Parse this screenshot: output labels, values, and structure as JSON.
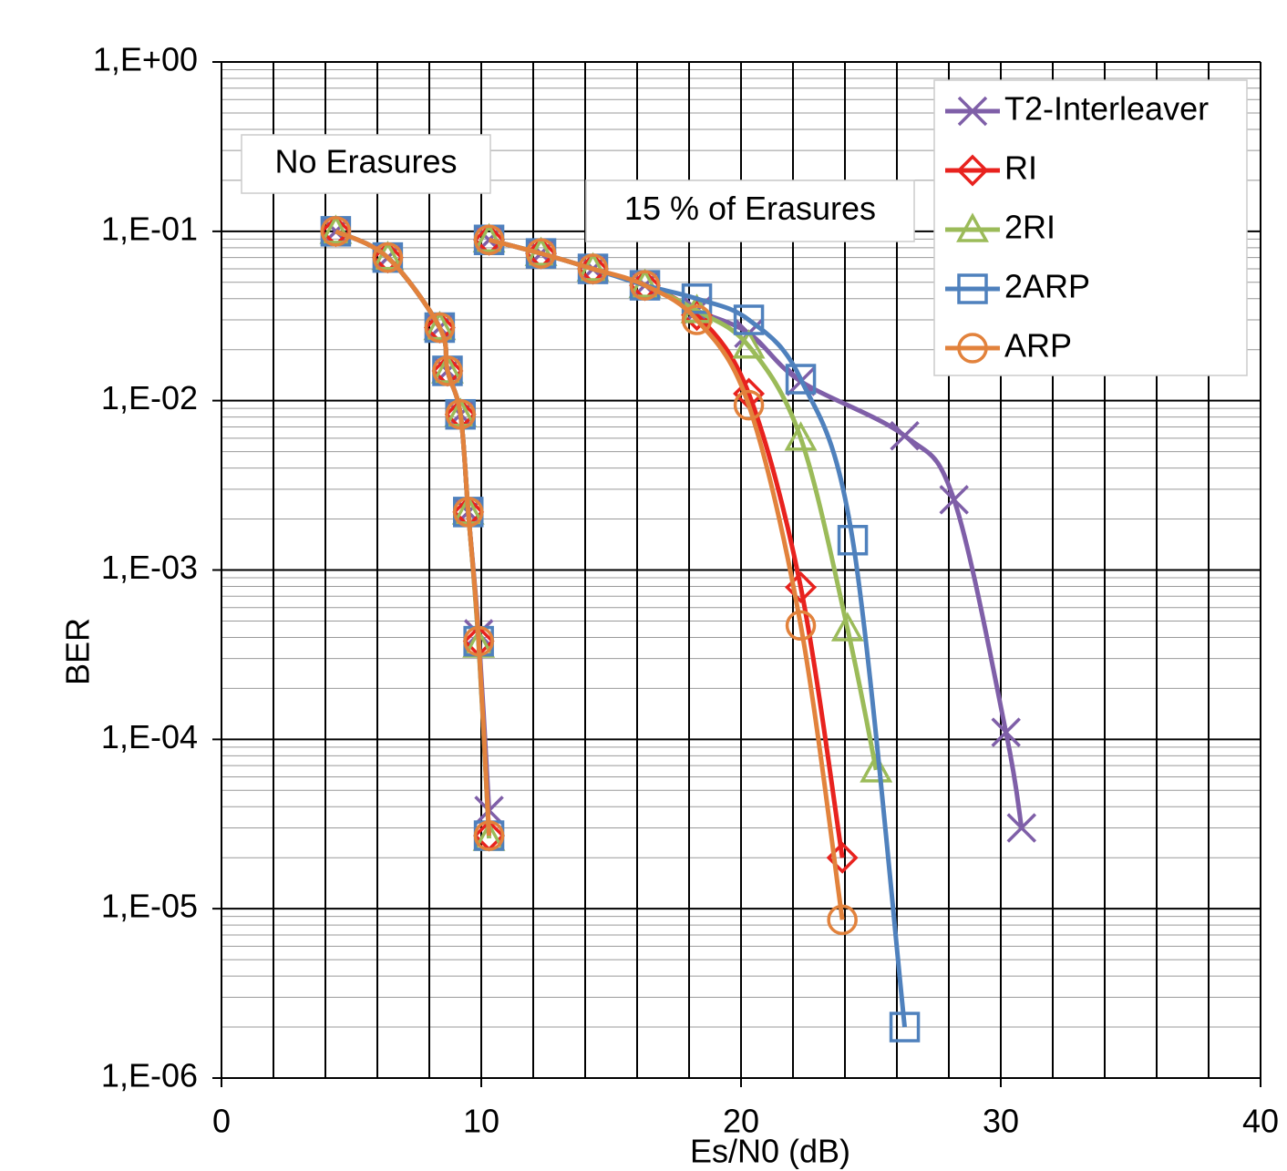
{
  "chart_data": {
    "type": "line",
    "xlabel": "Es/N0 (dB)",
    "ylabel": "BER",
    "xlim": [
      0,
      40
    ],
    "xticks": [
      0,
      10,
      20,
      30,
      40
    ],
    "ylim": [
      1e-06,
      1
    ],
    "log_y": true,
    "grid": true,
    "legend": "upper right",
    "yticks": [
      {
        "value": 1,
        "label": "1,E+00"
      },
      {
        "value": 0.1,
        "label": "1,E-01"
      },
      {
        "value": 0.01,
        "label": "1,E-02"
      },
      {
        "value": 0.001,
        "label": "1,E-03"
      },
      {
        "value": 0.0001,
        "label": "1,E-04"
      },
      {
        "value": 1e-05,
        "label": "1,E-05"
      },
      {
        "value": 1e-06,
        "label": "1,E-06"
      }
    ],
    "annotations": [
      "No Erasures",
      "15 % of Erasures"
    ],
    "series": [
      {
        "name": "T2-Interleaver",
        "color": "#7f5fa8",
        "marker": "x",
        "x": [
          4.4,
          6.4,
          8.4,
          8.7,
          9.2,
          9.5,
          9.9,
          10.3,
          null,
          10.3,
          12.3,
          14.3,
          16.3,
          18.3,
          20.3,
          22.3,
          26.3,
          28.2,
          30.2,
          30.8
        ],
        "values": [
          0.1,
          0.07,
          0.027,
          0.015,
          0.0083,
          0.0022,
          0.00042,
          3.8e-05,
          null,
          0.089,
          0.074,
          0.06,
          0.048,
          0.034,
          0.025,
          0.013,
          0.0062,
          0.0026,
          0.00011,
          3e-05
        ]
      },
      {
        "name": "RI",
        "color": "#e8221e",
        "marker": "diamond",
        "x": [
          4.4,
          6.4,
          8.4,
          8.7,
          9.2,
          9.5,
          9.9,
          10.3,
          null,
          10.3,
          12.3,
          14.3,
          16.3,
          18.3,
          20.3,
          22.3,
          23.9
        ],
        "values": [
          0.1,
          0.07,
          0.027,
          0.015,
          0.0083,
          0.0022,
          0.00038,
          2.7e-05,
          null,
          0.089,
          0.074,
          0.06,
          0.048,
          0.032,
          0.011,
          0.00079,
          2e-05
        ]
      },
      {
        "name": "2RI",
        "color": "#9bbb59",
        "marker": "triangle",
        "x": [
          4.4,
          6.4,
          8.4,
          8.7,
          9.2,
          9.5,
          9.9,
          10.3,
          null,
          10.3,
          12.3,
          14.3,
          16.3,
          18.3,
          20.3,
          22.3,
          24.1,
          25.2
        ],
        "values": [
          0.1,
          0.07,
          0.027,
          0.015,
          0.0083,
          0.0022,
          0.00036,
          2.6e-05,
          null,
          0.089,
          0.074,
          0.06,
          0.048,
          0.034,
          0.021,
          0.006,
          0.00045,
          6.6e-05
        ]
      },
      {
        "name": "2ARP",
        "color": "#4f81bd",
        "marker": "square",
        "x": [
          4.4,
          6.4,
          8.4,
          8.7,
          9.2,
          9.5,
          9.9,
          10.3,
          null,
          10.3,
          12.3,
          14.3,
          16.3,
          18.3,
          20.3,
          22.3,
          24.3,
          26.3
        ],
        "values": [
          0.1,
          0.07,
          0.027,
          0.015,
          0.0083,
          0.0022,
          0.00038,
          2.7e-05,
          null,
          0.089,
          0.074,
          0.06,
          0.048,
          0.04,
          0.03,
          0.0134,
          0.0015,
          2e-06
        ]
      },
      {
        "name": "ARP",
        "color": "#e2823c",
        "marker": "circle",
        "x": [
          4.4,
          6.4,
          8.4,
          8.7,
          9.2,
          9.5,
          9.9,
          10.3,
          null,
          10.3,
          12.3,
          14.3,
          16.3,
          18.3,
          20.3,
          22.3,
          23.9
        ],
        "values": [
          0.1,
          0.07,
          0.027,
          0.015,
          0.0083,
          0.0022,
          0.00038,
          2.7e-05,
          null,
          0.089,
          0.074,
          0.06,
          0.048,
          0.03,
          0.0094,
          0.00047,
          8.6e-06
        ]
      }
    ]
  }
}
